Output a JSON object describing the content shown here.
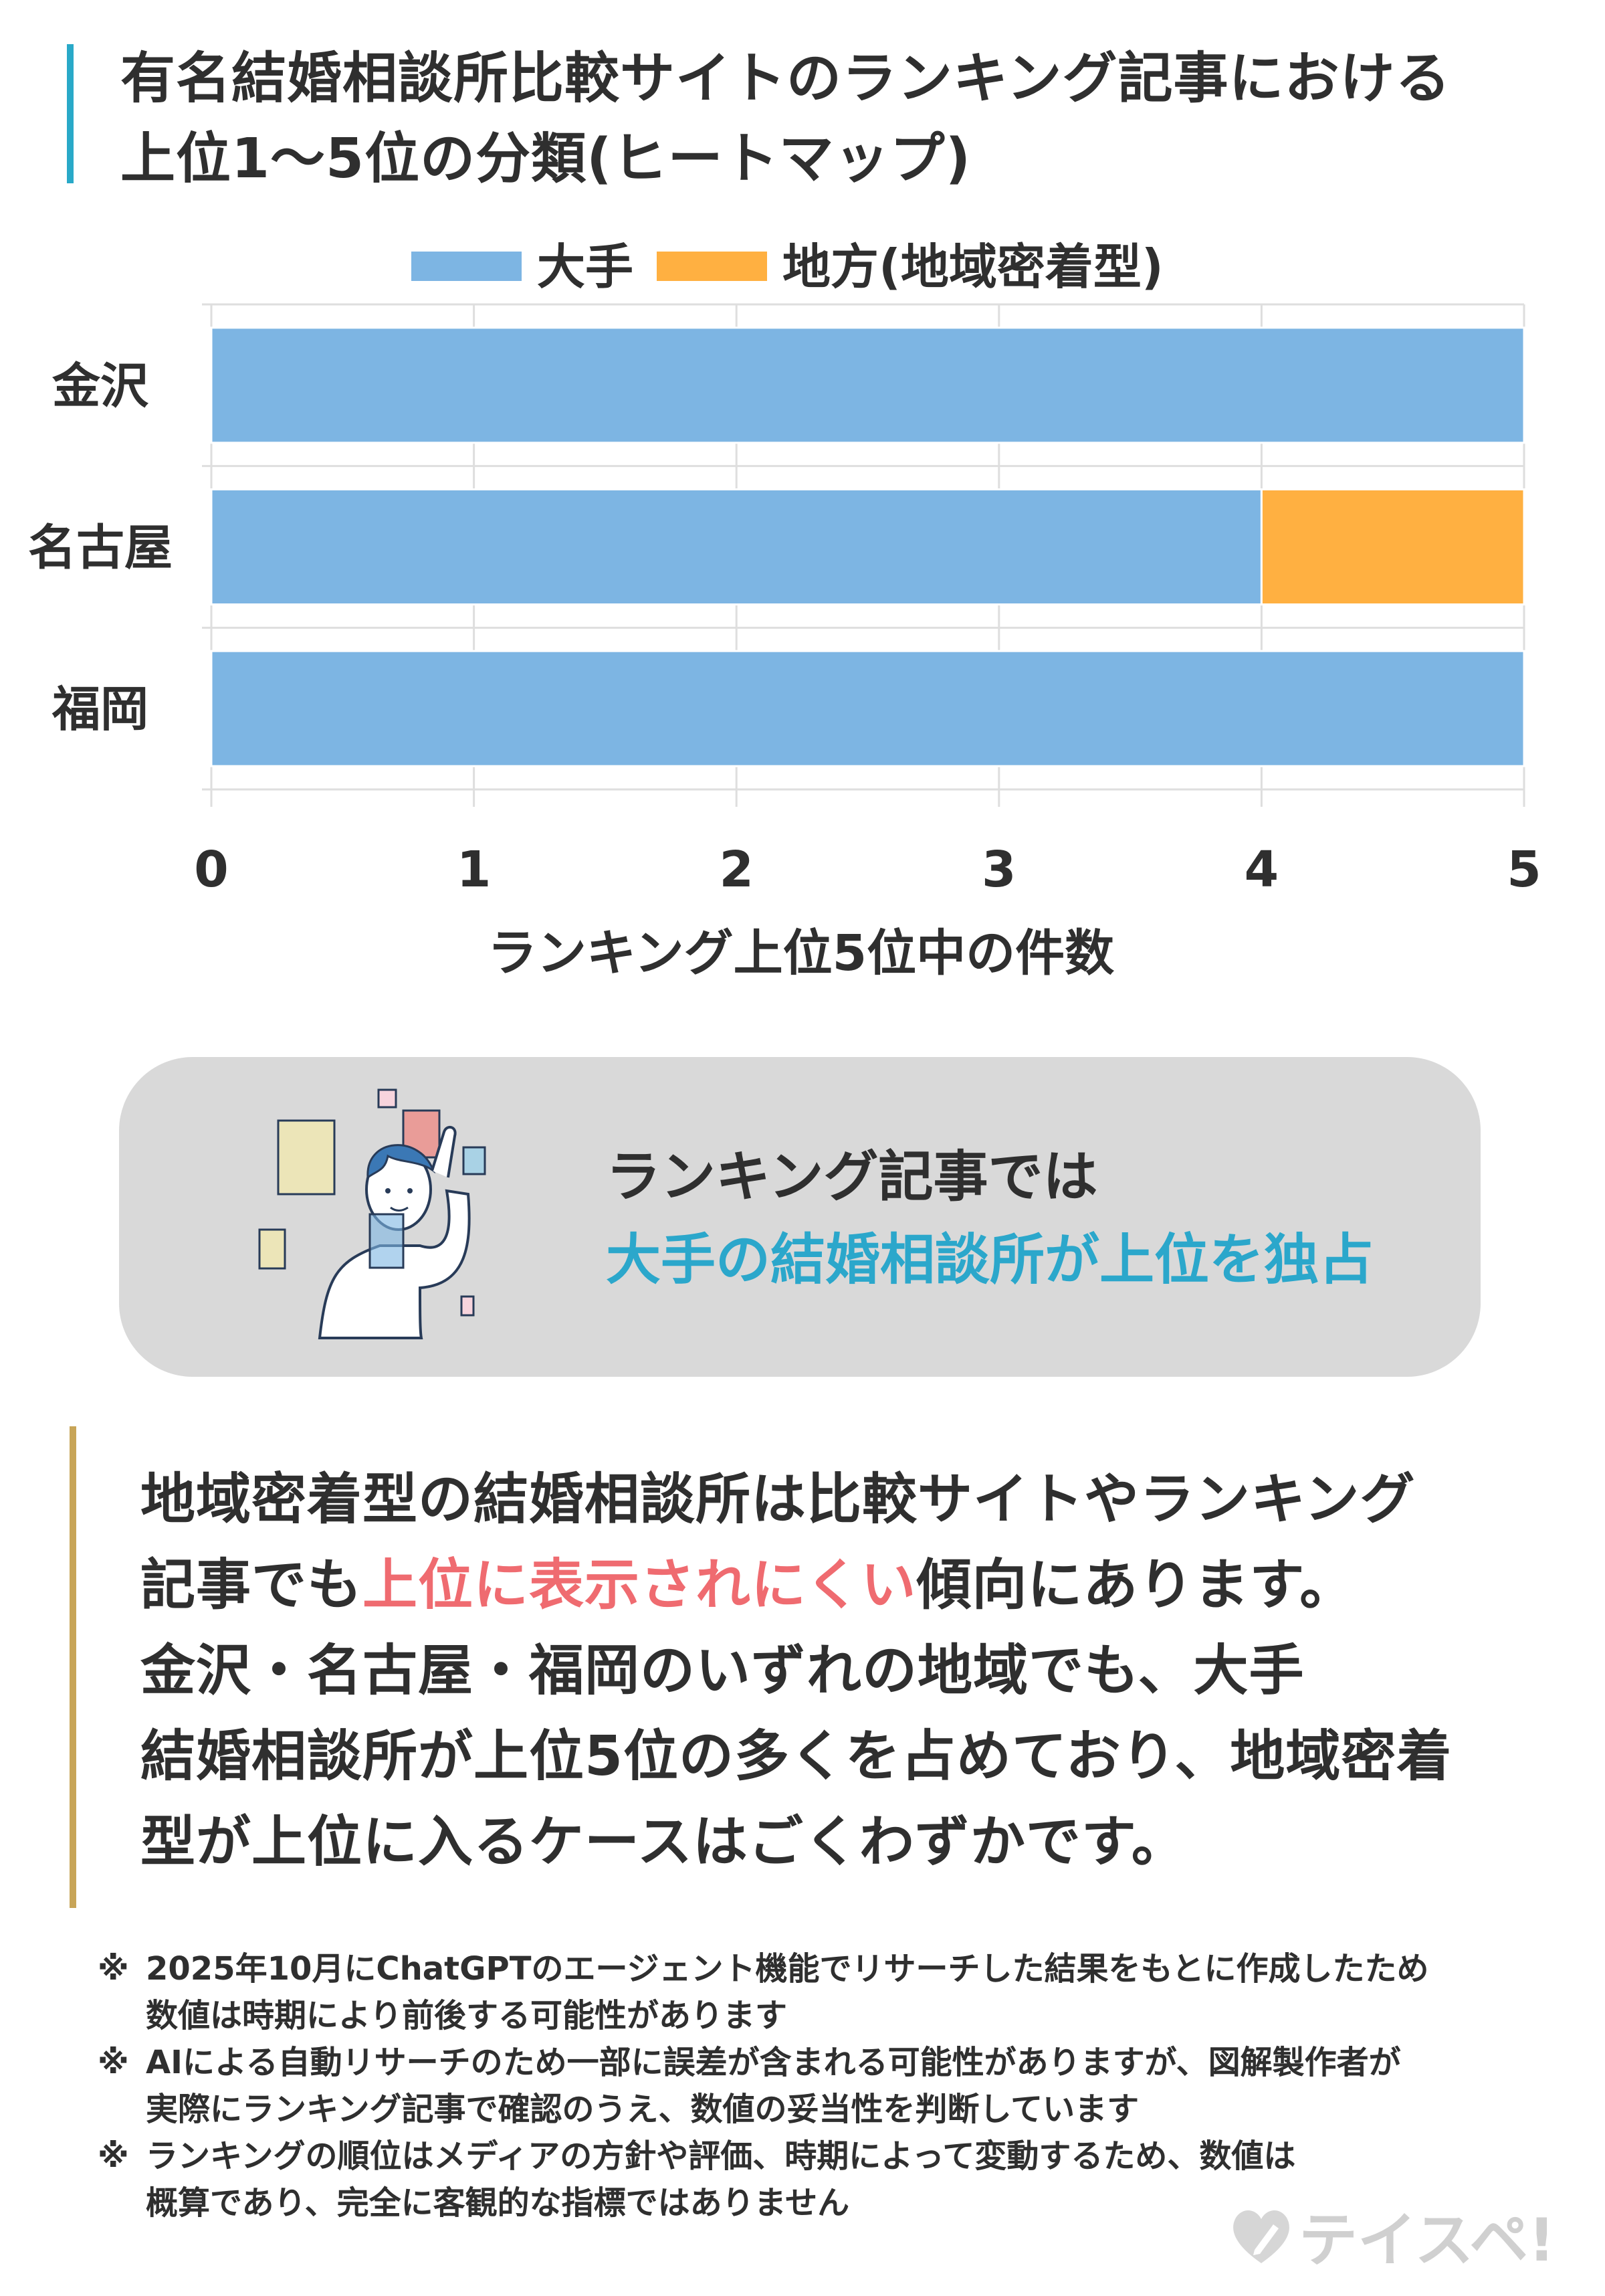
{
  "title": {
    "line1": "有名結婚相談所比較サイトのランキング記事における",
    "line2": "上位1〜5位の分類(ヒートマップ)"
  },
  "chart_data": {
    "type": "bar",
    "orientation": "horizontal",
    "stacked": true,
    "categories": [
      "金沢",
      "名古屋",
      "福岡"
    ],
    "series": [
      {
        "name": "大手",
        "values": [
          5,
          4,
          5
        ],
        "color": "#7db5e3"
      },
      {
        "name": "地方(地域密着型)",
        "values": [
          0,
          1,
          0
        ],
        "color": "#ffb041"
      }
    ],
    "xlabel": "ランキング上位5位中の件数",
    "xlim": [
      0,
      5
    ],
    "xticks": [
      "0",
      "1",
      "2",
      "3",
      "4",
      "5"
    ],
    "grid": true,
    "legend": "top"
  },
  "callout": {
    "line1": "ランキング記事では",
    "line2": "大手の結婚相談所が上位を独占",
    "accent_color": "#2ba7cb"
  },
  "body": {
    "line1": "地域密着型の結婚相談所は比較サイトやランキング",
    "line2_pre": "記事でも",
    "line2_highlight": "上位に表示されにくい",
    "line2_post": "傾向にあります。",
    "line3": "金沢・名古屋・福岡のいずれの地域でも、大手",
    "line4": "結婚相談所が上位5位の多くを占めており、地域密着",
    "line5": "型が上位に入るケースはごくわずかです。",
    "highlight_color": "#ef6b70"
  },
  "notes": [
    {
      "mark": "※",
      "lines": [
        "2025年10月にChatGPTのエージェント機能でリサーチした結果をもとに作成したため",
        "数値は時期により前後する可能性があります"
      ]
    },
    {
      "mark": "※",
      "lines": [
        " AIによる自動リサーチのため一部に誤差が含まれる可能性がありますが、図解製作者が",
        " 実際にランキング記事で確認のうえ、数値の妥当性を判断しています"
      ]
    },
    {
      "mark": "※",
      "lines": [
        "ランキングの順位はメディアの方針や評価、時期によって変動するため、数値は",
        "概算であり、完全に客観的な指標ではありません"
      ]
    }
  ],
  "logo": {
    "text": "テイスペ!",
    "icon": "heart-pencil-icon"
  }
}
